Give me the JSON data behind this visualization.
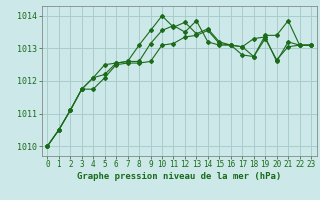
{
  "background_color": "#cce8e8",
  "grid_color": "#aacccc",
  "line_color": "#1a6b1a",
  "title": "Graphe pression niveau de la mer (hPa)",
  "xlim": [
    -0.5,
    23.5
  ],
  "ylim": [
    1009.7,
    1014.3
  ],
  "yticks": [
    1010,
    1011,
    1012,
    1013,
    1014
  ],
  "xticks": [
    0,
    1,
    2,
    3,
    4,
    5,
    6,
    7,
    8,
    9,
    10,
    11,
    12,
    13,
    14,
    15,
    16,
    17,
    18,
    19,
    20,
    21,
    22,
    23
  ],
  "series": [
    [
      1010.0,
      1010.5,
      1011.1,
      1011.75,
      1011.75,
      1012.1,
      1012.5,
      1012.55,
      1012.55,
      1012.6,
      1013.1,
      1013.15,
      1013.35,
      1013.4,
      1013.55,
      1013.15,
      1013.1,
      1012.8,
      1012.75,
      1013.3,
      1012.65,
      1013.05,
      1013.1,
      1013.1
    ],
    [
      1010.0,
      1010.5,
      1011.1,
      1011.75,
      1012.1,
      1012.5,
      1012.55,
      1012.6,
      1013.1,
      1013.55,
      1014.0,
      1013.65,
      1013.8,
      1013.45,
      1013.6,
      1013.2,
      1013.1,
      1013.05,
      1013.3,
      1013.35,
      1012.6,
      1013.2,
      1013.1,
      1013.1
    ],
    [
      1010.0,
      1010.5,
      1011.1,
      1011.75,
      1012.1,
      1012.2,
      1012.55,
      1012.6,
      1012.6,
      1013.15,
      1013.55,
      1013.7,
      1013.5,
      1013.85,
      1013.2,
      1013.1,
      1013.1,
      1013.05,
      1012.75,
      1013.4,
      1013.4,
      1013.85,
      1013.1,
      1013.1
    ]
  ],
  "ylabel_fontsize": 6.0,
  "xlabel_fontsize": 5.5,
  "title_fontsize": 6.5
}
